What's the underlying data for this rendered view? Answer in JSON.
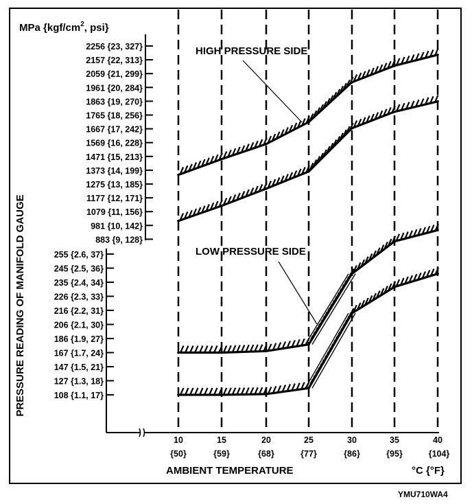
{
  "chart_data": {
    "type": "line",
    "unit_label": "MPa {kgf/cm2, psi}",
    "unit_label_main": "MPa {kgf/cm",
    "unit_label_sup": "2",
    "unit_label_tail": ", psi}",
    "ylabel": "PRESSURE READING OF MANIFOLD GAUGE",
    "xlabel": "AMBIENT TEMPERATURE",
    "x_unit": "°C {°F}",
    "x": [
      10,
      15,
      20,
      25,
      30,
      35,
      40
    ],
    "x_ticks": [
      {
        "c": "10",
        "f": "{50}"
      },
      {
        "c": "15",
        "f": "{59}"
      },
      {
        "c": "20",
        "f": "{68}"
      },
      {
        "c": "25",
        "f": "{77}"
      },
      {
        "c": "30",
        "f": "{86}"
      },
      {
        "c": "35",
        "f": "{95}"
      },
      {
        "c": "40",
        "f": "{104}"
      }
    ],
    "high_axis": {
      "ticks": [
        {
          "v": 2256,
          "label": "2256 {23, 327}"
        },
        {
          "v": 2157,
          "label": "2157 {22, 313}"
        },
        {
          "v": 2059,
          "label": "2059 {21, 299}"
        },
        {
          "v": 1961,
          "label": "1961 {20, 284}"
        },
        {
          "v": 1863,
          "label": "1863 {19, 270}"
        },
        {
          "v": 1765,
          "label": "1765 {18, 256}"
        },
        {
          "v": 1667,
          "label": "1667 {17, 242}"
        },
        {
          "v": 1569,
          "label": "1569 {16, 228}"
        },
        {
          "v": 1471,
          "label": "1471 {15, 213}"
        },
        {
          "v": 1373,
          "label": "1373 {14, 199}"
        },
        {
          "v": 1275,
          "label": "1275 {13, 185}"
        },
        {
          "v": 1177,
          "label": "1177 {12, 171}"
        },
        {
          "v": 1079,
          "label": "1079 {11, 156}"
        },
        {
          "v": 981,
          "label": "981 {10, 142}"
        },
        {
          "v": 883,
          "label": "883 {9, 128}"
        }
      ]
    },
    "low_axis": {
      "ticks": [
        {
          "v": 255,
          "label": "255 {2.6, 37}"
        },
        {
          "v": 245,
          "label": "245 {2.5, 36}"
        },
        {
          "v": 235,
          "label": "235 {2.4, 34}"
        },
        {
          "v": 226,
          "label": "226 {2.3, 33}"
        },
        {
          "v": 216,
          "label": "216 {2.2, 31}"
        },
        {
          "v": 206,
          "label": "206 {2.1, 30}"
        },
        {
          "v": 186,
          "label": "186 {1.9, 27}"
        },
        {
          "v": 167,
          "label": "167 {1.7, 24}"
        },
        {
          "v": 147,
          "label": "147 {1.5, 21}"
        },
        {
          "v": 127,
          "label": "127 {1.3, 18}"
        },
        {
          "v": 108,
          "label": "108 {1.1, 17}"
        }
      ]
    },
    "series": [
      {
        "name": "high-upper",
        "group": "HIGH PRESSURE SIDE",
        "axis": "high",
        "values": [
          1340,
          1452,
          1559,
          1715,
          1998,
          2115,
          2193
        ]
      },
      {
        "name": "high-lower",
        "group": "HIGH PRESSURE SIDE",
        "axis": "high",
        "values": [
          1013,
          1120,
          1242,
          1364,
          1671,
          1788,
          1861
        ]
      },
      {
        "name": "low-upper",
        "group": "LOW PRESSURE SIDE",
        "axis": "low",
        "values": [
          167,
          167,
          169,
          178,
          241,
          264,
          272
        ]
      },
      {
        "name": "low-lower",
        "group": "LOW PRESSURE SIDE",
        "axis": "low",
        "values": [
          108,
          108,
          109,
          117,
          214,
          232,
          241
        ]
      }
    ],
    "annotations": [
      "HIGH PRESSURE SIDE",
      "LOW PRESSURE SIDE"
    ],
    "figure_code": "YMU710WA4"
  }
}
